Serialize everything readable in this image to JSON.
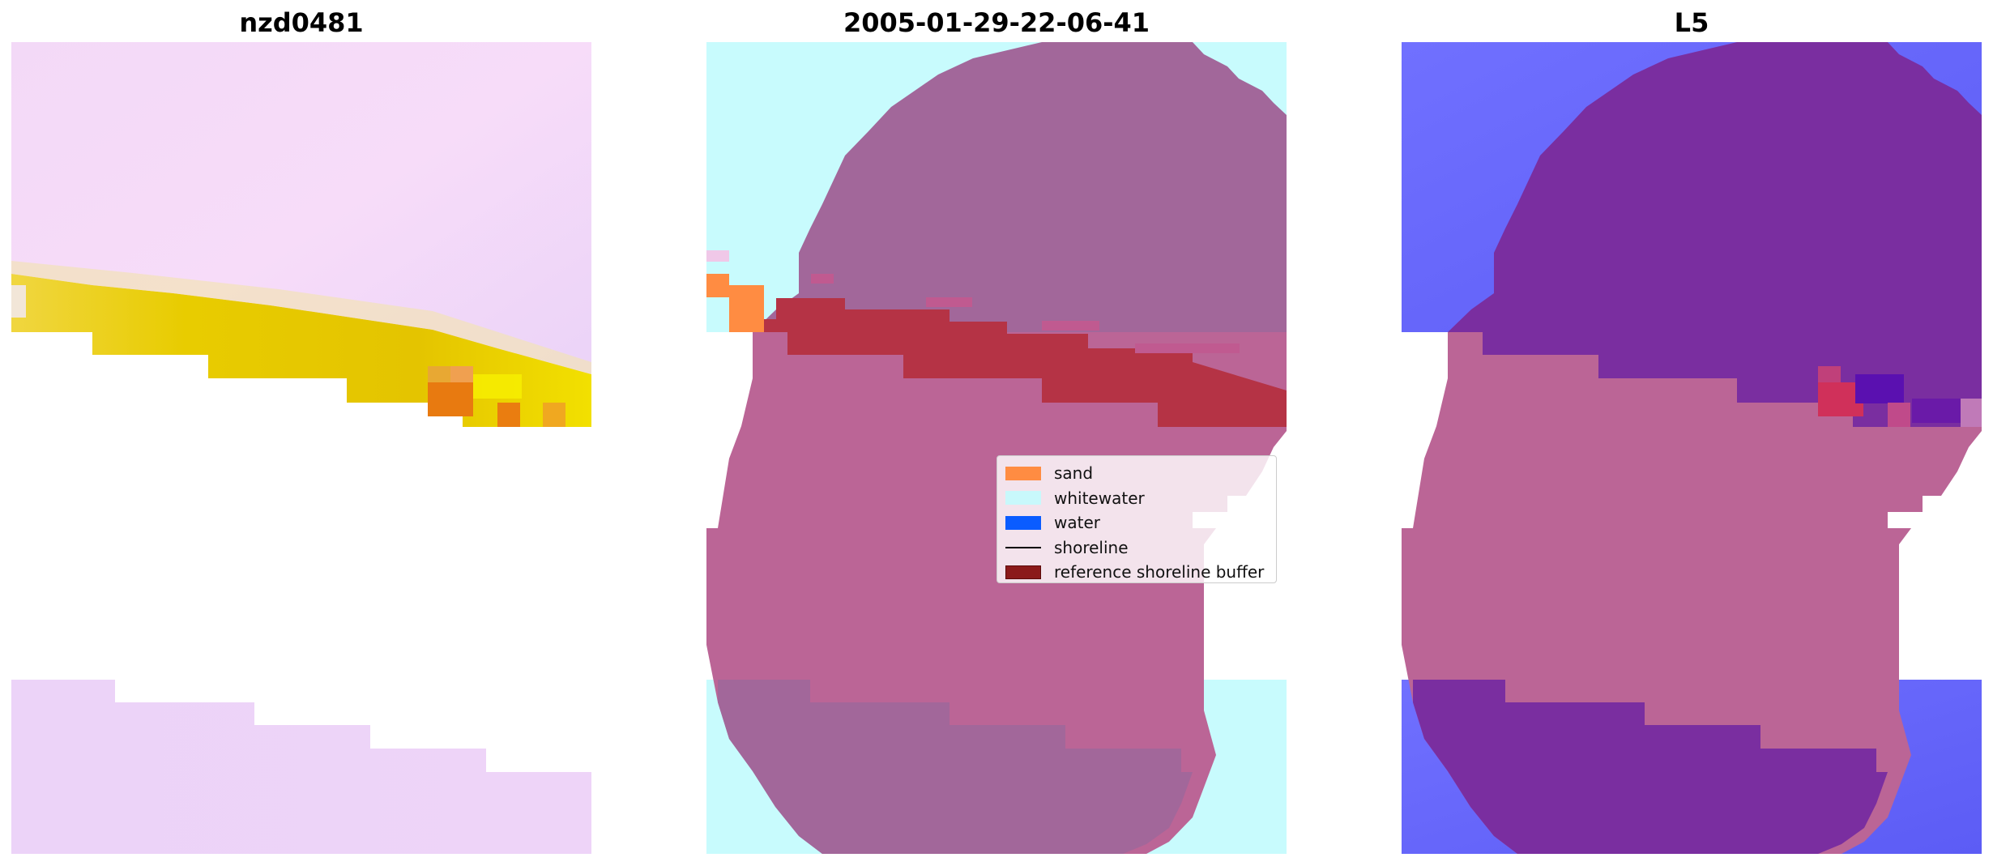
{
  "panels": [
    {
      "title": "nzd0481"
    },
    {
      "title": "2005-01-29-22-06-41"
    },
    {
      "title": "L5"
    }
  ],
  "legend": {
    "items": [
      {
        "label": "sand",
        "kind": "patch",
        "color": "#ff8c42"
      },
      {
        "label": "whitewater",
        "kind": "patch",
        "color": "#c8f8fb"
      },
      {
        "label": "water",
        "kind": "patch",
        "color": "#0a5cff"
      },
      {
        "label": "shoreline",
        "kind": "line",
        "color": "#000000"
      },
      {
        "label": "reference shoreline buffer",
        "kind": "patch",
        "color": "#8b1a1a"
      }
    ]
  },
  "colors": {
    "lavender_bg": "#ecd6f7",
    "yellow_band": "#e8c800",
    "orange_hot": "#ea7d10",
    "whitewater": "#c8fbfd",
    "mask_purple": "#a2679a",
    "mask_pink": "#bb6596",
    "buffer_red": "#b53345",
    "water_blue": "#6a6aff",
    "classified_purple": "#7a2ea0"
  }
}
